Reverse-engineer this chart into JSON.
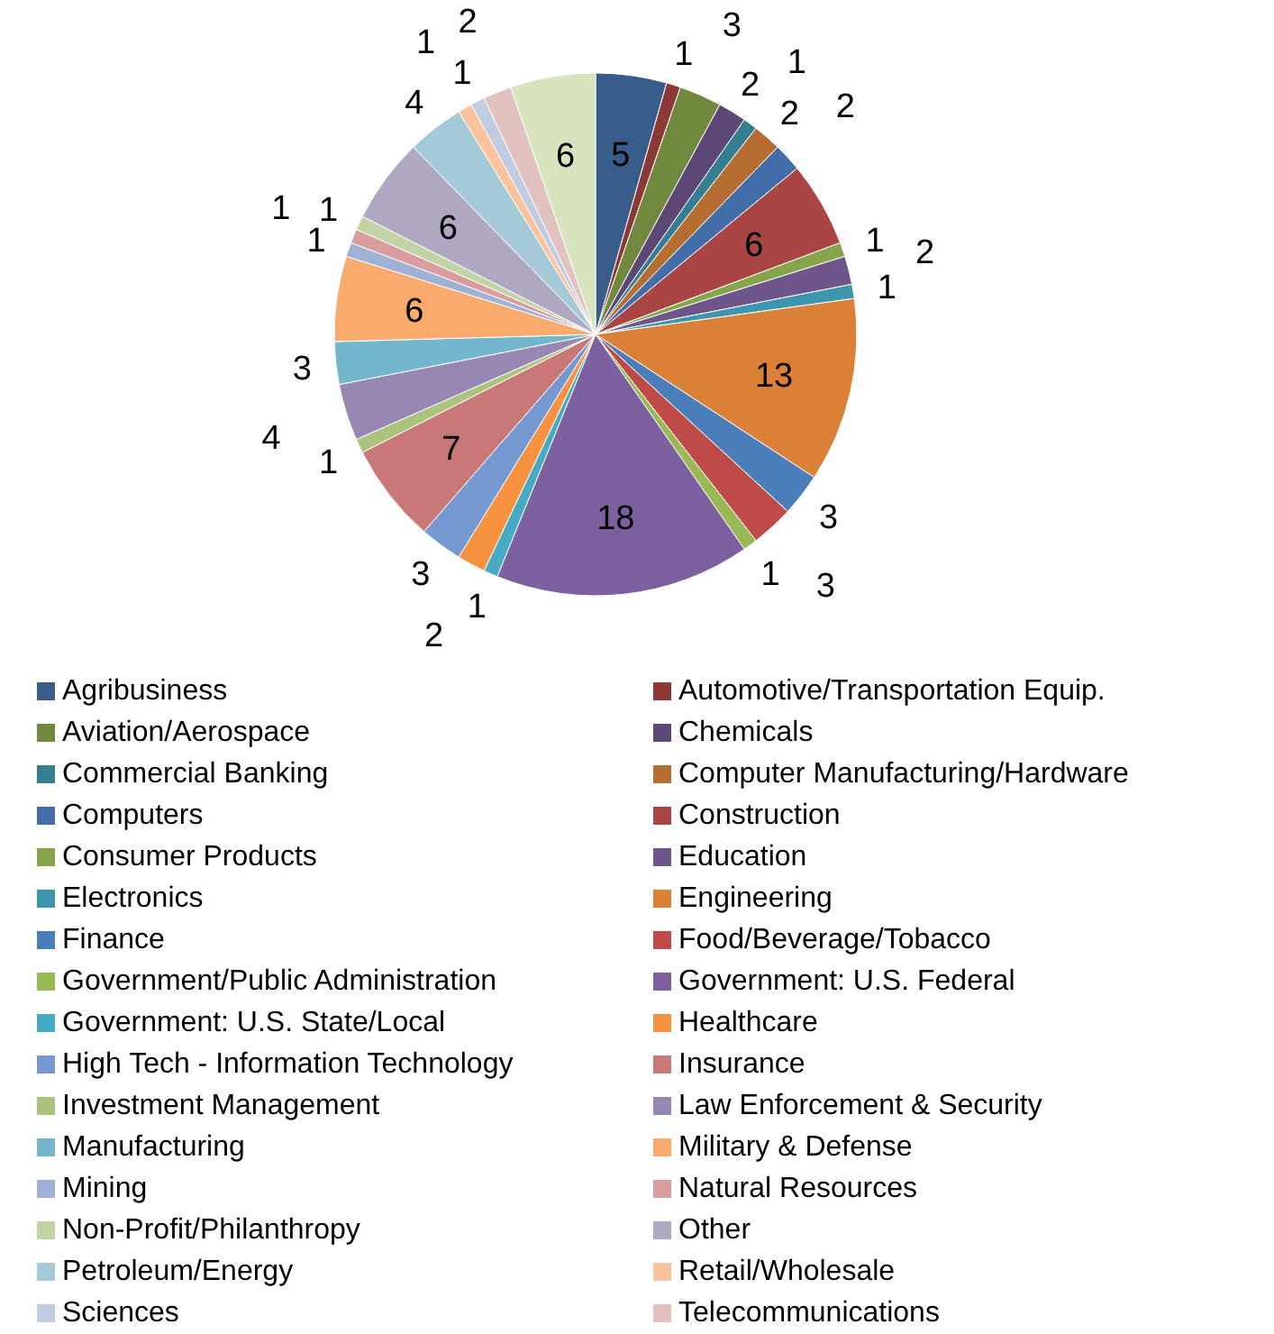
{
  "chart_data": {
    "type": "pie",
    "data_labels": true,
    "legend": "bottom",
    "categories": [
      "Agribusiness",
      "Automotive/Transportation Equip.",
      "Aviation/Aerospace",
      "Chemicals",
      "Commercial Banking",
      "Computer Manufacturing/Hardware",
      "Computers",
      "Construction",
      "Consumer Products",
      "Education",
      "Electronics",
      "Engineering",
      "Finance",
      "Food/Beverage/Tobacco",
      "Government/Public Administration",
      "Government: U.S. Federal",
      "Government: U.S. State/Local",
      "Healthcare",
      "High Tech - Information Technology",
      "Insurance",
      "Investment Management",
      "Law Enforcement & Security",
      "Manufacturing",
      "Military & Defense",
      "Mining",
      "Natural Resources",
      "Non-Profit/Philanthropy",
      "Other",
      "Petroleum/Energy",
      "Retail/Wholesale",
      "Sciences",
      "Telecommunications",
      null
    ],
    "values": [
      5,
      1,
      3,
      2,
      1,
      2,
      2,
      6,
      1,
      2,
      1,
      13,
      3,
      3,
      1,
      18,
      1,
      2,
      3,
      7,
      1,
      4,
      3,
      6,
      1,
      1,
      1,
      6,
      4,
      1,
      1,
      2,
      6
    ],
    "colors": [
      "#385d8a",
      "#8c3836",
      "#71893f",
      "#5c4776",
      "#357d91",
      "#b66d31",
      "#426da9",
      "#a94643",
      "#86a44a",
      "#6e568c",
      "#3d96ae",
      "#da8137",
      "#4a7ebb",
      "#be4b48",
      "#98b954",
      "#7d60a0",
      "#46aac5",
      "#f69240",
      "#7599d0",
      "#c97878",
      "#aac47d",
      "#9787b3",
      "#73b6ce",
      "#f9ab6e",
      "#a0b1d6",
      "#d89d9c",
      "#c2d4a6",
      "#b0a7c3",
      "#a4cad8",
      "#f9c39d",
      "#c2cce0",
      "#e2c1c1",
      "#d7e4bd"
    ]
  }
}
